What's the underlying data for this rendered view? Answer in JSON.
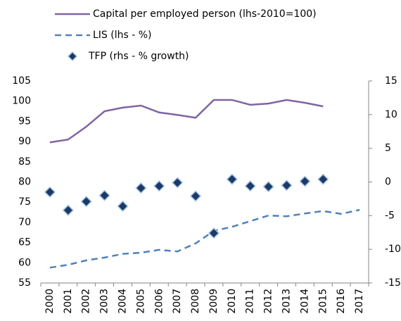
{
  "chart_data": {
    "type": "line",
    "categories": [
      "2000",
      "2001",
      "2002",
      "2003",
      "2004",
      "2005",
      "2006",
      "2007",
      "2008",
      "2009",
      "2010",
      "2011",
      "2012",
      "2013",
      "2014",
      "2015",
      "2016",
      "2017"
    ],
    "series": [
      {
        "name": "Capital per employed person (lhs-2010=100)",
        "color": "#8064a2",
        "style": "solid",
        "values": [
          89.8,
          90.5,
          93.7,
          97.5,
          98.4,
          98.9,
          97.2,
          96.6,
          95.9,
          100.3,
          100.3,
          99.1,
          99.4,
          100.3,
          99.6,
          98.7,
          null,
          null
        ]
      },
      {
        "name": "LIS (lhs - %)",
        "color": "#4f81bd",
        "style": "dashed",
        "values": [
          58.8,
          59.5,
          60.6,
          61.3,
          62.2,
          62.5,
          63.2,
          62.8,
          64.8,
          67.9,
          68.9,
          70.3,
          71.7,
          71.5,
          72.2,
          72.8,
          72.1,
          73.1
        ]
      },
      {
        "name": "TFP (rhs  - % growth)",
        "color": "#1f3864",
        "style": "marker",
        "axis": "y2",
        "values": [
          -1.5,
          -4.2,
          -2.9,
          -2.0,
          -3.6,
          -0.9,
          -0.6,
          -0.1,
          -2.1,
          -7.6,
          0.4,
          -0.6,
          -0.7,
          -0.5,
          0.1,
          0.4,
          null,
          null
        ]
      }
    ],
    "ylim": [
      55,
      105
    ],
    "yticks": [
      55,
      60,
      65,
      70,
      75,
      80,
      85,
      90,
      95,
      100,
      105
    ],
    "y2lim": [
      -15,
      15
    ],
    "y2ticks": [
      -15,
      -10,
      -5,
      0,
      5,
      10,
      15
    ]
  }
}
